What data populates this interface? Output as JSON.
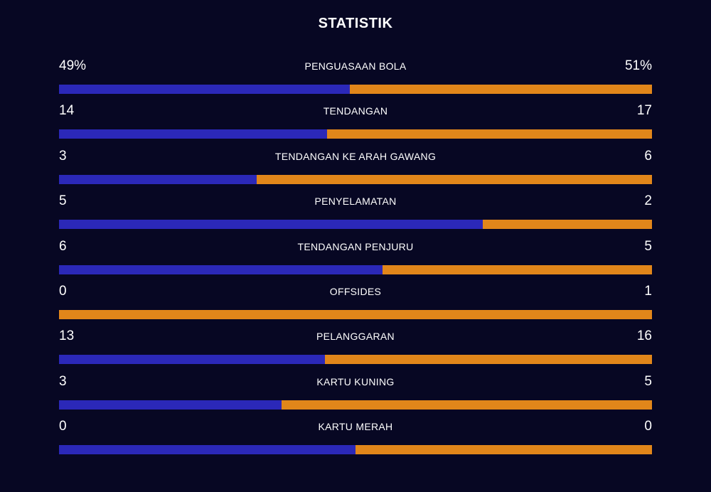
{
  "title": "STATISTIK",
  "colors": {
    "background": "#070723",
    "home_bar": "#2b28b8",
    "away_bar": "#e1861a"
  },
  "stats": [
    {
      "label": "PENGUASAAN BOLA",
      "home": "49%",
      "away": "51%",
      "home_value": 49,
      "away_value": 51
    },
    {
      "label": "TENDANGAN",
      "home": "14",
      "away": "17",
      "home_value": 14,
      "away_value": 17
    },
    {
      "label": "TENDANGAN KE ARAH GAWANG",
      "home": "3",
      "away": "6",
      "home_value": 3,
      "away_value": 6
    },
    {
      "label": "PENYELAMATAN",
      "home": "5",
      "away": "2",
      "home_value": 5,
      "away_value": 2
    },
    {
      "label": "TENDANGAN PENJURU",
      "home": "6",
      "away": "5",
      "home_value": 6,
      "away_value": 5
    },
    {
      "label": "OFFSIDES",
      "home": "0",
      "away": "1",
      "home_value": 0,
      "away_value": 1
    },
    {
      "label": "PELANGGARAN",
      "home": "13",
      "away": "16",
      "home_value": 13,
      "away_value": 16
    },
    {
      "label": "KARTU KUNING",
      "home": "3",
      "away": "5",
      "home_value": 3,
      "away_value": 5
    },
    {
      "label": "KARTU MERAH",
      "home": "0",
      "away": "0",
      "home_value": 0,
      "away_value": 0
    }
  ]
}
